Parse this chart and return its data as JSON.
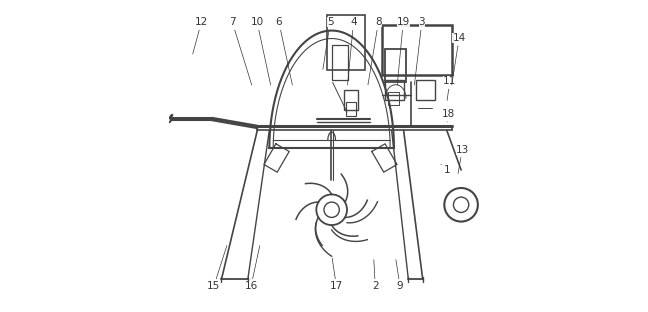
{
  "bg_color": "#ffffff",
  "line_color": "#444444",
  "label_color": "#333333",
  "fig_width": 6.48,
  "fig_height": 3.12,
  "dpi": 100,
  "label_positions": {
    "1": [
      0.895,
      0.455,
      0.87,
      0.48
    ],
    "2": [
      0.665,
      0.08,
      0.66,
      0.175
    ],
    "3": [
      0.815,
      0.93,
      0.79,
      0.72
    ],
    "4": [
      0.595,
      0.93,
      0.575,
      0.72
    ],
    "5": [
      0.52,
      0.93,
      0.495,
      0.77
    ],
    "6": [
      0.355,
      0.93,
      0.4,
      0.72
    ],
    "7": [
      0.205,
      0.93,
      0.27,
      0.72
    ],
    "8": [
      0.675,
      0.93,
      0.64,
      0.72
    ],
    "9": [
      0.745,
      0.08,
      0.73,
      0.175
    ],
    "10": [
      0.285,
      0.93,
      0.33,
      0.72
    ],
    "11": [
      0.905,
      0.74,
      0.895,
      0.67
    ],
    "12": [
      0.105,
      0.93,
      0.075,
      0.82
    ],
    "13": [
      0.945,
      0.52,
      0.93,
      0.435
    ],
    "14": [
      0.935,
      0.88,
      0.91,
      0.72
    ],
    "15": [
      0.145,
      0.08,
      0.19,
      0.22
    ],
    "16": [
      0.265,
      0.08,
      0.295,
      0.22
    ],
    "17": [
      0.54,
      0.08,
      0.525,
      0.18
    ],
    "18": [
      0.9,
      0.635,
      0.895,
      0.6
    ],
    "19": [
      0.755,
      0.93,
      0.735,
      0.72
    ]
  }
}
